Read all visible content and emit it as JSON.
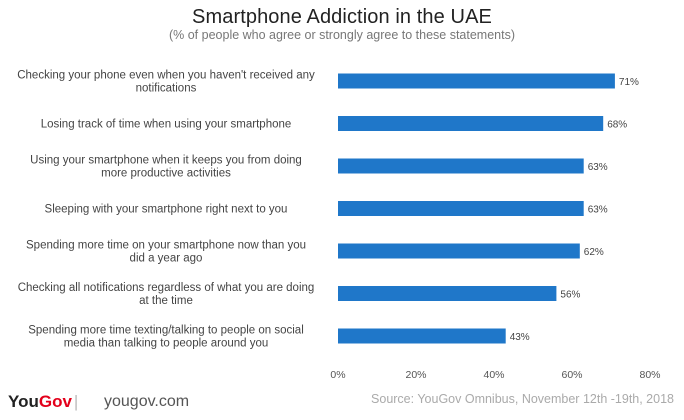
{
  "chart_data": {
    "type": "bar",
    "orientation": "horizontal",
    "title": "Smartphone Addiction in the UAE",
    "subtitle": "(% of people who agree or strongly agree to these statements)",
    "categories": [
      [
        "Checking your phone even when you haven't received any",
        "notifications"
      ],
      [
        "Losing track of time when using your smartphone"
      ],
      [
        "Using your smartphone when it keeps you from doing",
        "more productive activities"
      ],
      [
        "Sleeping with your smartphone right next to you"
      ],
      [
        "Spending more time on your smartphone now than you",
        "did a year ago"
      ],
      [
        "Checking all notifications regardless of what you are doing",
        "at the time"
      ],
      [
        "Spending more time texting/talking to people on social",
        "media than talking to people around you"
      ]
    ],
    "values": [
      71,
      68,
      63,
      63,
      62,
      56,
      43
    ],
    "value_labels": [
      "71%",
      "68%",
      "63%",
      "63%",
      "62%",
      "56%",
      "43%"
    ],
    "xlim": [
      0,
      80
    ],
    "xticks": [
      "0%",
      "20%",
      "40%",
      "60%",
      "80%"
    ],
    "bar_color": "#1f77c9",
    "grid": false
  },
  "footer": {
    "brand_you": "You",
    "brand_gov": "Gov",
    "separator": "|",
    "site": "yougov.com",
    "source": "Source: YouGov Omnibus, November 12th -19th, 2018"
  }
}
